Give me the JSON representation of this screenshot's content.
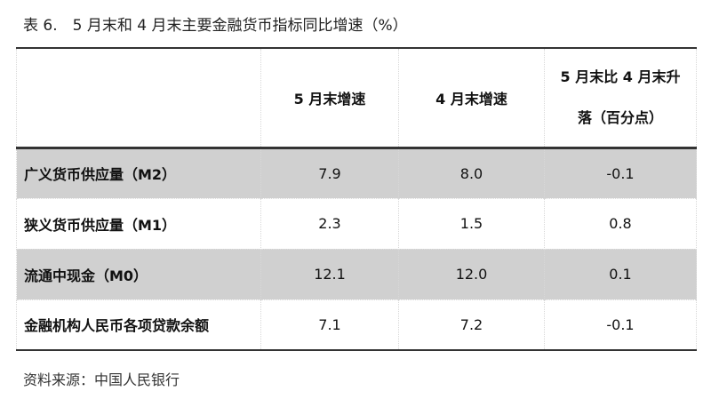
{
  "title": "表 6.　5 月末和 4 月末主要金融货币指标同比增速（%）",
  "table": {
    "headers": [
      "",
      "5 月末增速",
      "4 月末增速"
    ],
    "header_col3_line1": "5 月末比 4 月末升",
    "header_col3_line2": "落（百分点）",
    "rows": [
      {
        "label": "广义货币供应量（M2）",
        "may": "7.9",
        "apr": "8.0",
        "change": "-0.1",
        "shaded": true
      },
      {
        "label": "狭义货币供应量（M1）",
        "may": "2.3",
        "apr": "1.5",
        "change": "0.8",
        "shaded": false
      },
      {
        "label": "流通中现金（M0）",
        "may": "12.1",
        "apr": "12.0",
        "change": "0.1",
        "shaded": true
      },
      {
        "label": "金融机构人民币各项贷款余额",
        "may": "7.1",
        "apr": "7.2",
        "change": "-0.1",
        "shaded": false
      }
    ],
    "shade_color": "#d0d0d0"
  },
  "source": "资料来源：中国人民银行"
}
